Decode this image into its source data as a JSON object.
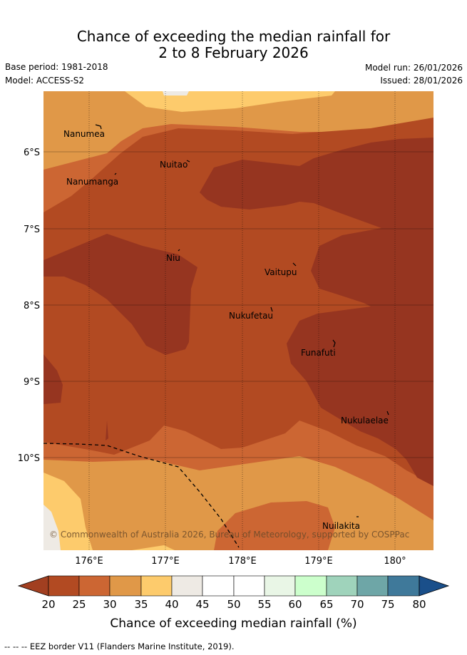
{
  "title": {
    "line1": "Chance of exceeding the median rainfall for",
    "line2": "2 to 8 February 2026"
  },
  "meta": {
    "base_period": "Base period: 1981-2018",
    "model": "Model: ACCESS-S2",
    "model_run": "Model run: 26/01/2026",
    "issued": "Issued: 28/01/2026"
  },
  "map": {
    "x_ticks": [
      "176°E",
      "177°E",
      "178°E",
      "179°E",
      "180°"
    ],
    "y_ticks": [
      "6°S",
      "7°S",
      "8°S",
      "9°S",
      "10°S"
    ],
    "islands": [
      "Nanumea",
      "Nuitao",
      "Nanumanga",
      "Niu",
      "Vaitupu",
      "Nukufetau",
      "Funafuti",
      "Nukulaelae",
      "Nuilakita"
    ],
    "copyright": "© Commonwealth of Australia 2026, Bureau of Meteorology, supported by COSPPac"
  },
  "colorbar": {
    "ticks": [
      "20",
      "25",
      "30",
      "35",
      "40",
      "45",
      "50",
      "55",
      "60",
      "65",
      "70",
      "75",
      "80"
    ],
    "colors": {
      "below20": "#a23f20",
      "c20_25": "#b24a22",
      "c25_30": "#cc6633",
      "c30_35": "#e09848",
      "c35_40": "#fdcb6c",
      "c40_45": "#eeeae4",
      "c45_50": "#ffffff",
      "c50_55": "#ffffff",
      "c55_60": "#e9f6e6",
      "c60_65": "#ccffcc",
      "c65_70": "#9fd3bb",
      "c70_75": "#6ea6a7",
      "c75_80": "#3f799a",
      "above80": "#1a4f8a"
    },
    "label": "Chance of exceeding median rainfall (%)"
  },
  "legend": {
    "eez_text": "-- -- -- EEZ border V11 (Flanders Marine Institute, 2019)."
  }
}
